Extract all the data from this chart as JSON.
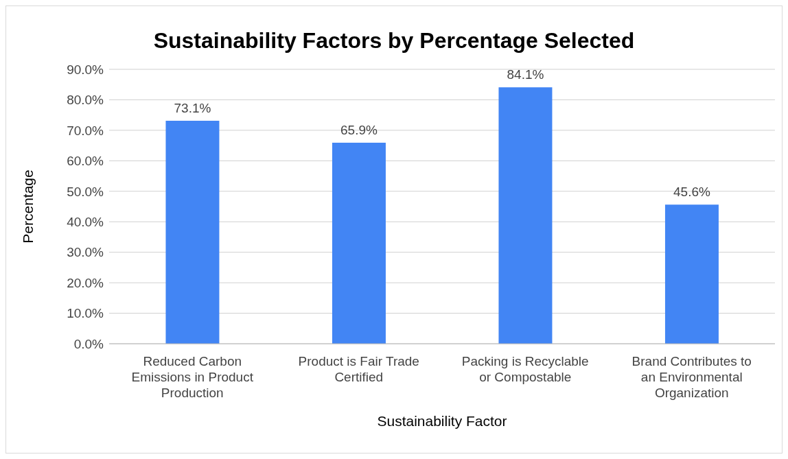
{
  "chart_data": {
    "type": "bar",
    "title": "Sustainability Factors by Percentage Selected",
    "xlabel": "Sustainability Factor",
    "ylabel": "Percentage",
    "categories": [
      "Reduced Carbon Emissions in Product Production",
      "Product is Fair Trade Certified",
      "Packing is Recyclable or Compostable",
      "Brand Contributes to an Environmental Organization"
    ],
    "values": [
      73.1,
      65.9,
      84.1,
      45.6
    ],
    "value_labels": [
      "73.1%",
      "65.9%",
      "84.1%",
      "45.6%"
    ],
    "color": "#4285f4",
    "ylim": [
      0,
      90
    ],
    "yticks": [
      {
        "value": 0,
        "label": "0.0%"
      },
      {
        "value": 10,
        "label": "10.0%"
      },
      {
        "value": 20,
        "label": "20.0%"
      },
      {
        "value": 30,
        "label": "30.0%"
      },
      {
        "value": 40,
        "label": "40.0%"
      },
      {
        "value": 50,
        "label": "50.0%"
      },
      {
        "value": 60,
        "label": "60.0%"
      },
      {
        "value": 70,
        "label": "70.0%"
      },
      {
        "value": 80,
        "label": "80.0%"
      },
      {
        "value": 90,
        "label": "90.0%"
      }
    ],
    "grid": "y"
  }
}
